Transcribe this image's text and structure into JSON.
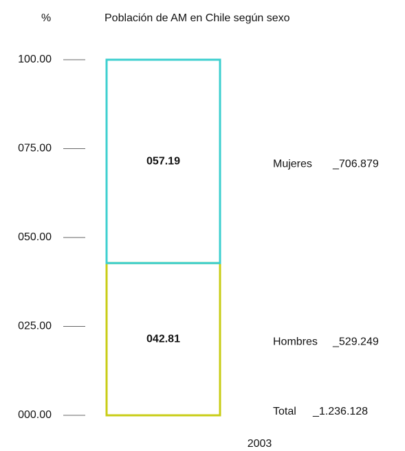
{
  "chart_data": {
    "type": "stacked_bar",
    "title": "Población de AM en Chile según sexo",
    "y_label": "%",
    "categories": [
      "2003"
    ],
    "series": [
      {
        "name": "Hombres",
        "color": "#c8cc14",
        "values": [
          42.81
        ],
        "value_labels": [
          "042.81"
        ],
        "legend_value": "_529.249"
      },
      {
        "name": "Mujeres",
        "color": "#3ccfcf",
        "values": [
          57.19
        ],
        "value_labels": [
          "057.19"
        ],
        "legend_value": "_706.879"
      }
    ],
    "total": {
      "name": "Total",
      "legend_value": "_1.236.128"
    },
    "ylim": [
      0,
      100
    ],
    "yticks": [
      {
        "value": 0,
        "label": "000.00"
      },
      {
        "value": 25,
        "label": "025.00"
      },
      {
        "value": 50,
        "label": "050.00"
      },
      {
        "value": 75,
        "label": "075.00"
      },
      {
        "value": 100,
        "label": "100.00"
      }
    ]
  }
}
